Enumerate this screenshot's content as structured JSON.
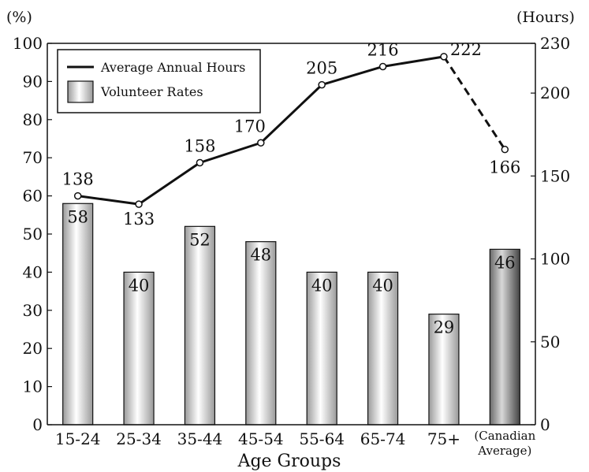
{
  "chart_data": {
    "type": "bar",
    "categories": [
      "15-24",
      "25-34",
      "35-44",
      "45-54",
      "55-64",
      "65-74",
      "75+",
      "Canadian Average"
    ],
    "category_labels": [
      "15-24",
      "25-34",
      "35-44",
      "45-54",
      "55-64",
      "65-74",
      "75+",
      "(Canadian Average)"
    ],
    "xlabel": "Age Groups",
    "left_unit": "(%)",
    "right_unit": "(Hours)",
    "ylim_left": [
      0,
      100
    ],
    "yticks_left": [
      0,
      10,
      20,
      30,
      40,
      50,
      60,
      70,
      80,
      90,
      100
    ],
    "ylim_right": [
      0,
      230
    ],
    "yticks_right": [
      0,
      50,
      100,
      150,
      200,
      230
    ],
    "grid": false,
    "legend_position": "top-left",
    "series": [
      {
        "name": "Volunteer Rates",
        "type": "bar",
        "axis": "left",
        "values": [
          58,
          40,
          52,
          48,
          40,
          40,
          29,
          46
        ],
        "colors": [
          "#d8d8d8",
          "#d8d8d8",
          "#d8d8d8",
          "#d8d8d8",
          "#d8d8d8",
          "#d8d8d8",
          "#d8d8d8",
          "#5a5a5a"
        ]
      },
      {
        "name": "Average Annual Hours",
        "type": "line",
        "axis": "right",
        "values": [
          138,
          133,
          158,
          170,
          205,
          216,
          222,
          166
        ],
        "dashed_last_segment": true
      }
    ]
  }
}
